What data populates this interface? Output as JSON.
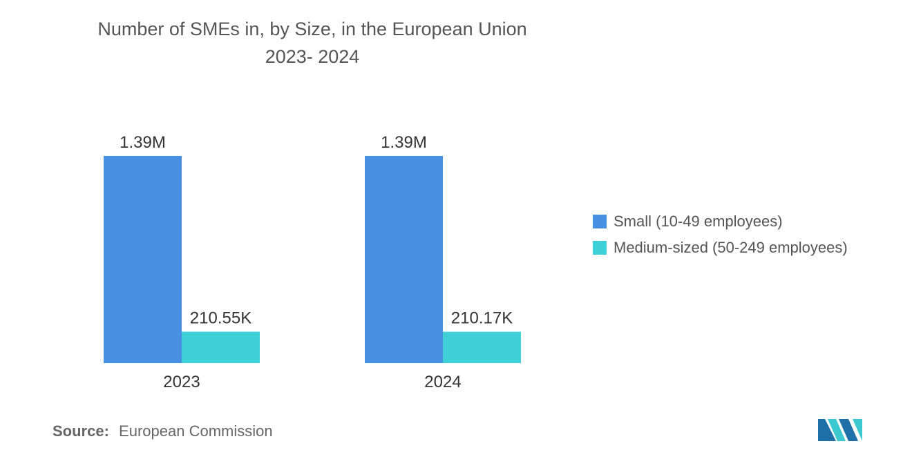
{
  "chart_data": {
    "type": "bar",
    "title": "Number of SMEs in, by Size, in the European Union",
    "subtitle": "2023- 2024",
    "categories": [
      "2023",
      "2024"
    ],
    "series": [
      {
        "name": "Small (10-49 employees)",
        "values": [
          1390000,
          1390000
        ],
        "labels": [
          "1.39M",
          "1.39M"
        ],
        "color": "#4a90e2"
      },
      {
        "name": "Medium-sized (50-249 employees)",
        "values": [
          210550,
          210170
        ],
        "labels": [
          "210.55K",
          "210.17K"
        ],
        "color": "#40d0d8"
      }
    ],
    "xlabel": "",
    "ylabel": "",
    "ylim": [
      0,
      1390000
    ],
    "legend_position": "right"
  },
  "source": {
    "label": "Source:",
    "text": "European Commission"
  },
  "logo": {
    "name": "mordor-intelligence-logo",
    "colors": [
      "#1f6fa8",
      "#3cc8d0"
    ]
  }
}
